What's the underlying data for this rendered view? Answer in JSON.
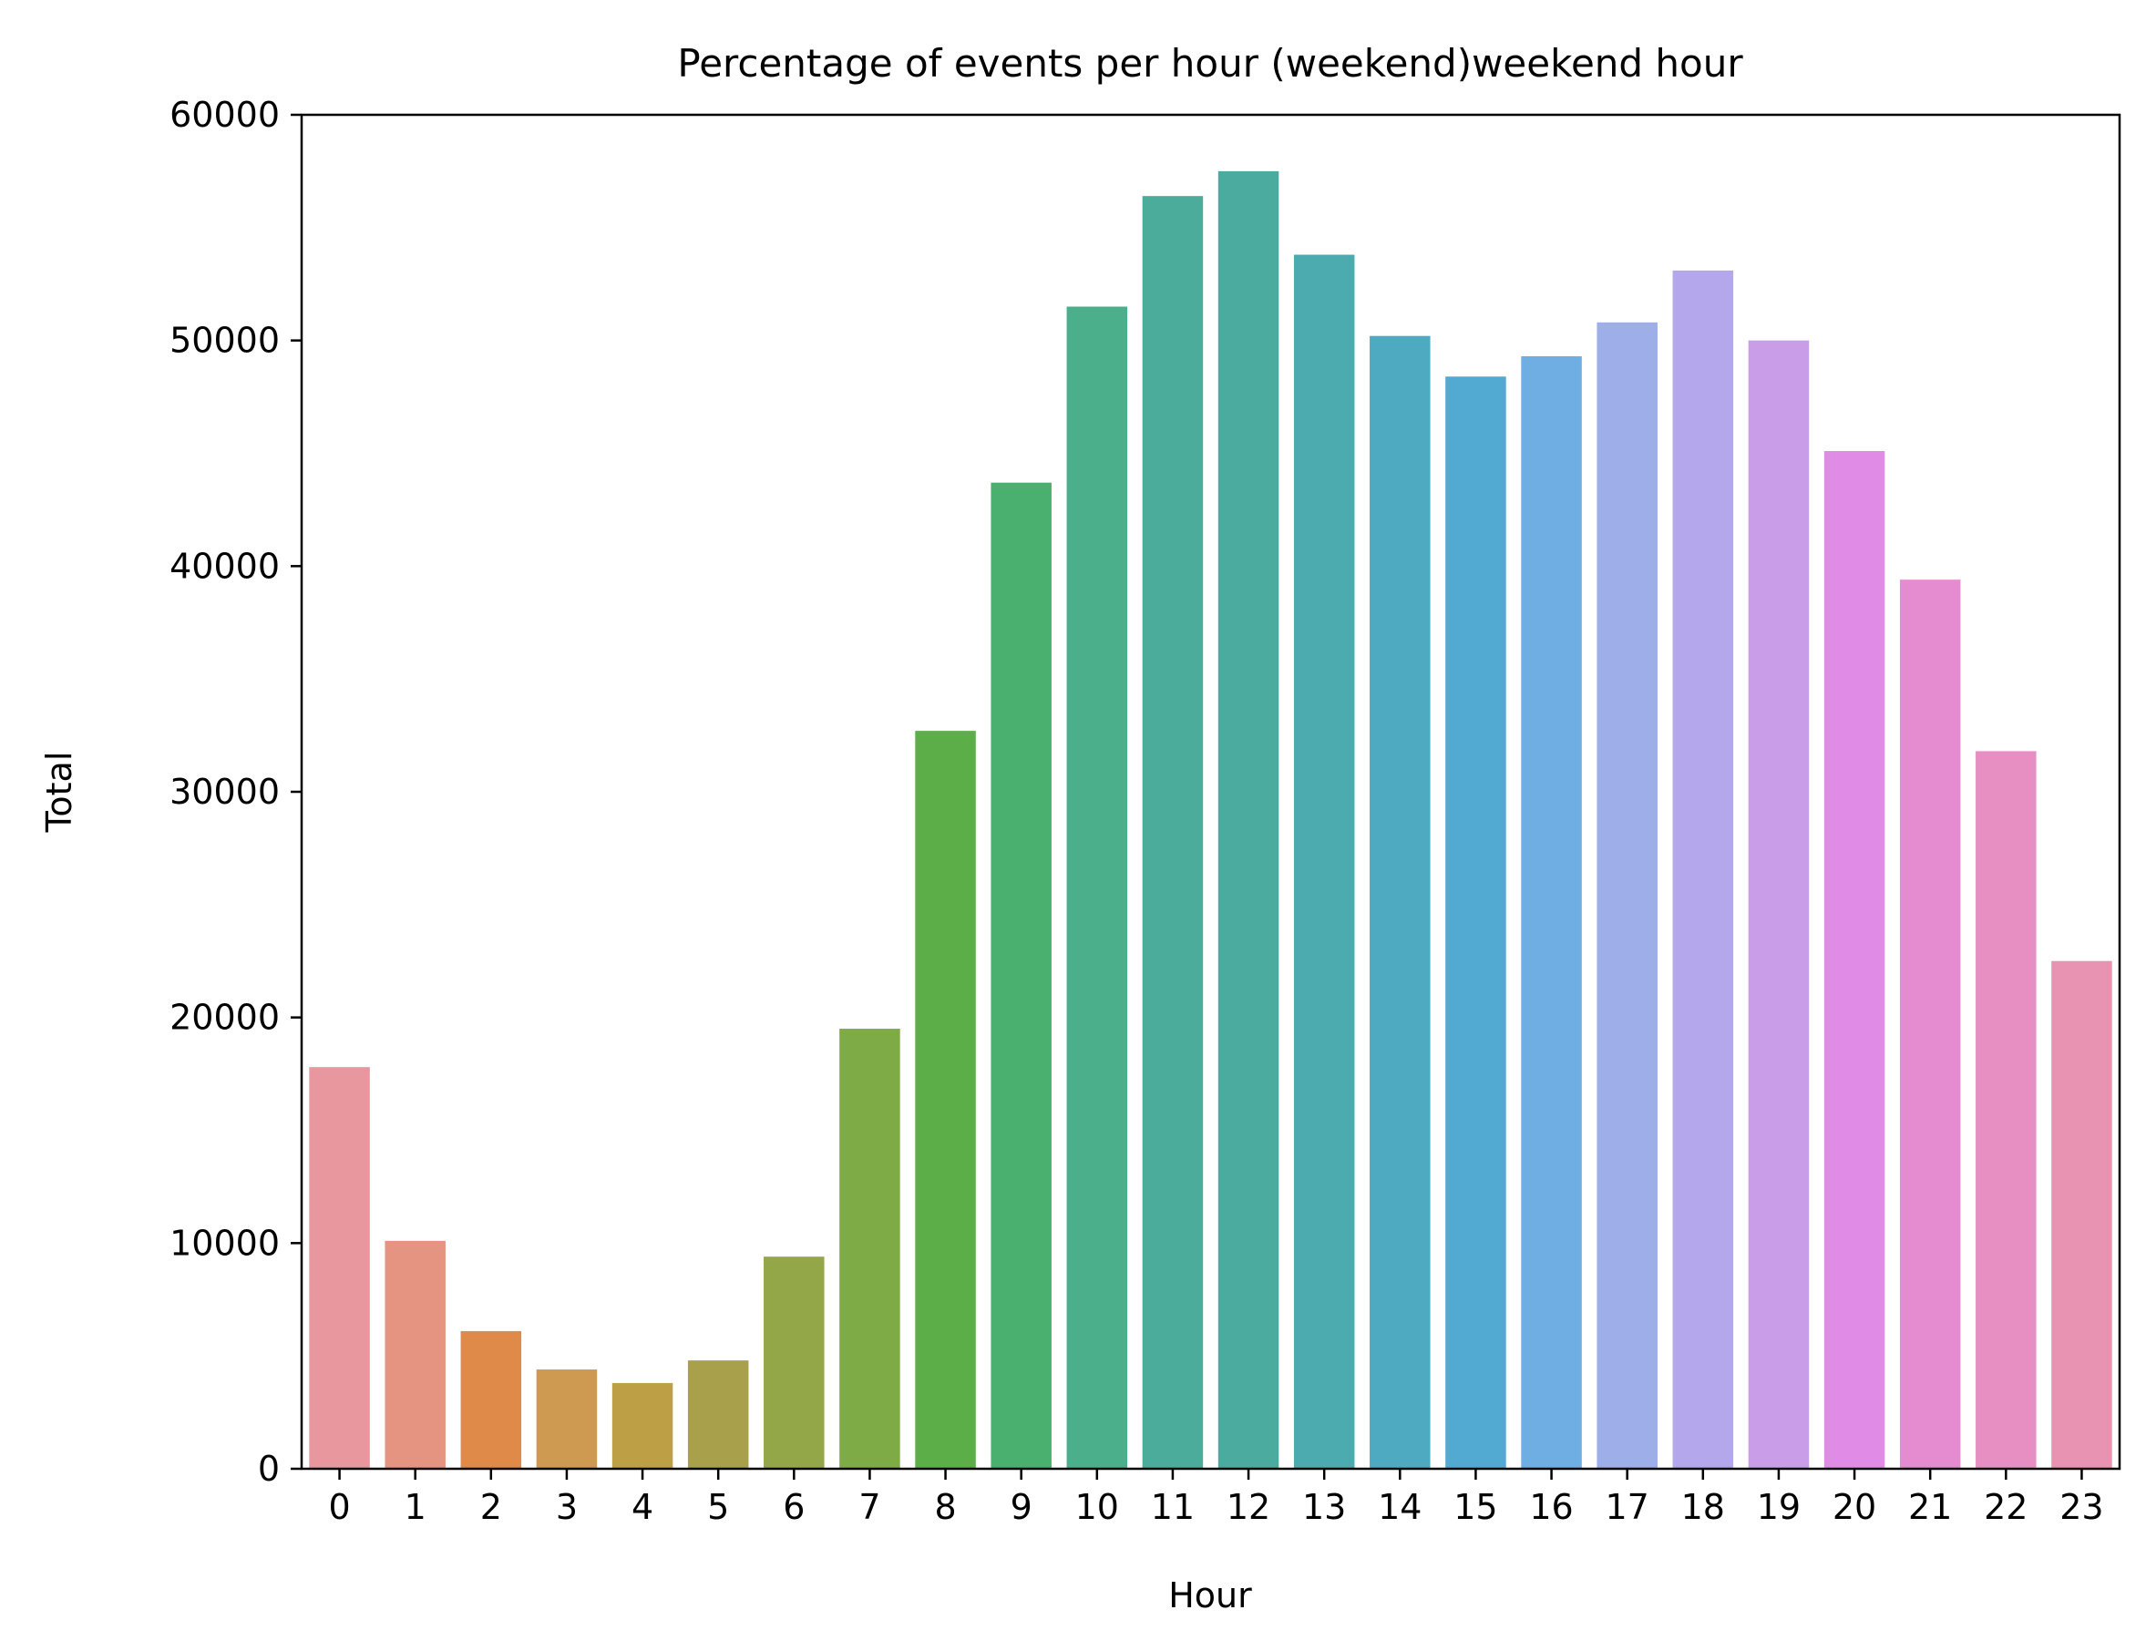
{
  "chart_data": {
    "type": "bar",
    "title": "Percentage of events per hour (weekend)weekend hour",
    "xlabel": "Hour",
    "ylabel": "Total",
    "ylim": [
      0,
      60000
    ],
    "yticks": [
      0,
      10000,
      20000,
      30000,
      40000,
      50000,
      60000
    ],
    "grid": false,
    "categories": [
      "0",
      "1",
      "2",
      "3",
      "4",
      "5",
      "6",
      "7",
      "8",
      "9",
      "10",
      "11",
      "12",
      "13",
      "14",
      "15",
      "16",
      "17",
      "18",
      "19",
      "20",
      "21",
      "22",
      "23"
    ],
    "values": [
      17800,
      10100,
      6100,
      4400,
      3800,
      4800,
      9400,
      19500,
      32700,
      43700,
      51500,
      56400,
      57500,
      53800,
      50200,
      48400,
      49300,
      50800,
      53100,
      50000,
      45100,
      39400,
      31800,
      22500
    ],
    "colors": [
      "#e8979f",
      "#e49481",
      "#e08a4a",
      "#ce9a52",
      "#bd9f46",
      "#a8a04a",
      "#93a648",
      "#7fab47",
      "#5cae49",
      "#49b06f",
      "#4aaf8a",
      "#4bac9b",
      "#4cab9f",
      "#4cabaf",
      "#4eaac1",
      "#52aad3",
      "#6eaee3",
      "#9daee8",
      "#b5a7ec",
      "#ca9de8",
      "#e08ce6",
      "#e58cd1",
      "#e78fc2",
      "#e993b2"
    ]
  }
}
